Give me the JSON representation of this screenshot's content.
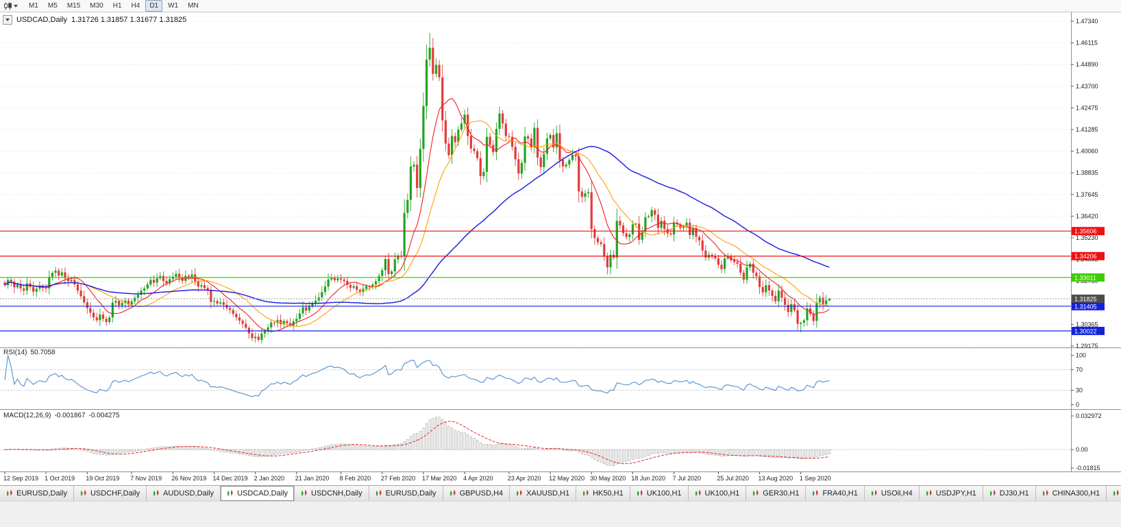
{
  "toolbar": {
    "timeframes": [
      "M1",
      "M5",
      "M15",
      "M30",
      "H1",
      "H4",
      "D1",
      "W1",
      "MN"
    ],
    "active_timeframe": "D1"
  },
  "chart": {
    "symbol_label": "USDCAD,Daily",
    "ohlc_text": "1.31726 1.31857 1.31677 1.31825"
  },
  "price_axis": {
    "labels": [
      "1.47340",
      "1.46115",
      "1.44890",
      "1.43700",
      "1.42475",
      "1.41285",
      "1.40060",
      "1.38835",
      "1.37645",
      "1.36420",
      "1.35230",
      "1.34005",
      "1.32780",
      "1.31555",
      "1.30365",
      "1.29175"
    ]
  },
  "rsi": {
    "label": "RSI(14)",
    "value": "50.7058",
    "period": 14,
    "color": "#4f8fd0",
    "levels": [
      70,
      30
    ],
    "axis": [
      {
        "v": 100,
        "t": "100"
      },
      {
        "v": 70,
        "t": "70"
      },
      {
        "v": 30,
        "t": "30"
      },
      {
        "v": 0,
        "t": "0"
      }
    ]
  },
  "macd": {
    "label": "MACD(12,26,9)",
    "main_value": "-0.001867",
    "signal_value": "-0.004275",
    "fast": 12,
    "slow": 26,
    "signal": 9,
    "hist_color": "#b3b3b3",
    "signal_color": "#ee2222",
    "range_min": -0.01815,
    "range_max": 0.032972,
    "axis": [
      {
        "v": 0.032972,
        "t": "0.032972"
      },
      {
        "v": 0,
        "t": "0.00"
      },
      {
        "v": -0.01815,
        "t": "-0.01815"
      }
    ]
  },
  "tabs": {
    "active_index": 3,
    "items": [
      {
        "label": "EURUSD,Daily"
      },
      {
        "label": "USDCHF,Daily"
      },
      {
        "label": "AUDUSD,Daily"
      },
      {
        "label": "USDCAD,Daily"
      },
      {
        "label": "USDCNH,Daily"
      },
      {
        "label": "EURUSD,Daily"
      },
      {
        "label": "GBPUSD,H4"
      },
      {
        "label": "XAUUSD,H1"
      },
      {
        "label": "HK50,H1"
      },
      {
        "label": "UK100,H1"
      },
      {
        "label": "UK100,H1"
      },
      {
        "label": "GER30,H1"
      },
      {
        "label": "FRA40,H1"
      },
      {
        "label": "USOil,H4"
      },
      {
        "label": "USDJPY,H1"
      },
      {
        "label": "DJ30,H1"
      },
      {
        "label": "CHINA300,H1"
      },
      {
        "label": "USOil,H1"
      }
    ]
  },
  "chart_data": {
    "type": "candlestick",
    "title": "USDCAD,Daily",
    "ylim": [
      1.29175,
      1.4734
    ],
    "ohlc_current": {
      "open": 1.31726,
      "high": 1.31857,
      "low": 1.31677,
      "close": 1.31825
    },
    "spike_high": 1.4669,
    "up_color": "#22a322",
    "down_color": "#e33a3a",
    "grid_color": "#dcdcdc",
    "x_labels": [
      "12 Sep 2019",
      "1 Oct 2019",
      "19 Oct 2019",
      "7 Nov 2019",
      "26 Nov 2019",
      "14 Dec 2019",
      "2 Jan 2020",
      "21 Jan 2020",
      "8 Feb 2020",
      "27 Feb 2020",
      "17 Mar 2020",
      "4 Apr 2020",
      "23 Apr 2020",
      "12 May 2020",
      "30 May 2020",
      "18 Jun 2020",
      "7 Jul 2020",
      "25 Jul 2020",
      "13 Aug 2020",
      "1 Sep 2020"
    ],
    "closes": [
      1.3258,
      1.3288,
      1.3278,
      1.3246,
      1.3262,
      1.324,
      1.3228,
      1.3268,
      1.3248,
      1.3222,
      1.3238,
      1.3252,
      1.3243,
      1.324,
      1.3305,
      1.3327,
      1.334,
      1.3312,
      1.333,
      1.3296,
      1.328,
      1.3288,
      1.3262,
      1.3228,
      1.3196,
      1.3162,
      1.313,
      1.3104,
      1.3078,
      1.3062,
      1.3094,
      1.307,
      1.3052,
      1.3078,
      1.316,
      1.317,
      1.3145,
      1.3158,
      1.3172,
      1.315,
      1.3168,
      1.3188,
      1.3205,
      1.3228,
      1.324,
      1.3262,
      1.3288,
      1.3272,
      1.3296,
      1.331,
      1.3282,
      1.3268,
      1.3292,
      1.3306,
      1.3322,
      1.3298,
      1.3282,
      1.331,
      1.3296,
      1.3318,
      1.328,
      1.325,
      1.3258,
      1.3242,
      1.3228,
      1.3165,
      1.317,
      1.3155,
      1.3162,
      1.3148,
      1.313,
      1.312,
      1.3098,
      1.3078,
      1.306,
      1.3042,
      1.302,
      1.2988,
      1.2962,
      1.297,
      1.2952,
      1.2988,
      1.3002,
      1.3022,
      1.305,
      1.3046,
      1.3064,
      1.304,
      1.3058,
      1.3046,
      1.3032,
      1.3056,
      1.307,
      1.31,
      1.3134,
      1.3116,
      1.314,
      1.3158,
      1.3172,
      1.319,
      1.322,
      1.325,
      1.329,
      1.3298,
      1.3286,
      1.3296,
      1.329,
      1.3282,
      1.326,
      1.3244,
      1.3252,
      1.3232,
      1.322,
      1.3238,
      1.3252,
      1.3248,
      1.3262,
      1.328,
      1.331,
      1.3342,
      1.3404,
      1.332,
      1.3335,
      1.3402,
      1.3422,
      1.3418,
      1.3662,
      1.3735,
      1.3922,
      1.3932,
      1.3802,
      1.402,
      1.426,
      1.452,
      1.4586,
      1.444,
      1.449,
      1.442,
      1.418,
      1.405,
      1.3985,
      1.4092,
      1.4058,
      1.4128,
      1.4162,
      1.4212,
      1.4092,
      1.4022,
      1.4008,
      1.3968,
      1.3868,
      1.3892,
      1.4088,
      1.4042,
      1.4002,
      1.4132,
      1.4218,
      1.4162,
      1.4092,
      1.4088,
      1.4032,
      1.3962,
      1.3882,
      1.3942,
      1.409,
      1.4078,
      1.403,
      1.4138,
      1.3972,
      1.3918,
      1.3992,
      1.4078,
      1.4098,
      1.4028,
      1.4108,
      1.3958,
      1.3922,
      1.3932,
      1.3958,
      1.3988,
      1.3978,
      1.3782,
      1.3752,
      1.3772,
      1.3778,
      1.3572,
      1.3522,
      1.3498,
      1.3488,
      1.3418,
      1.3358,
      1.3428,
      1.3412,
      1.3618,
      1.3592,
      1.3548,
      1.3528,
      1.3542,
      1.3598,
      1.3602,
      1.3512,
      1.3558,
      1.3638,
      1.3642,
      1.3678,
      1.3652,
      1.3578,
      1.3618,
      1.3572,
      1.3548,
      1.3542,
      1.3608,
      1.3598,
      1.3578,
      1.3588,
      1.3608,
      1.3538,
      1.3578,
      1.3528,
      1.3508,
      1.3452,
      1.3412,
      1.3428,
      1.3418,
      1.3408,
      1.3372,
      1.3348,
      1.3408,
      1.3418,
      1.3398,
      1.3388,
      1.3378,
      1.3328,
      1.3288,
      1.3358,
      1.3378,
      1.3328,
      1.3308,
      1.3248,
      1.3218,
      1.3258,
      1.3228,
      1.3198,
      1.3168,
      1.3228,
      1.3188,
      1.3148,
      1.3108,
      1.3152,
      1.3118,
      1.3042,
      1.3048,
      1.3062,
      1.3128,
      1.3098,
      1.3058,
      1.3162,
      1.3188,
      1.3152,
      1.3173,
      1.31825
    ],
    "low_overrides": [
      {
        "i": 80,
        "l": 1.2942
      },
      {
        "i": 250,
        "l": 1.3008
      },
      {
        "i": 251,
        "l": 1.2994
      }
    ],
    "moving_averages": [
      {
        "period": 10,
        "color": "#f21d1d"
      },
      {
        "period": 20,
        "color": "#ff9f00"
      },
      {
        "period": 60,
        "color": "#2424e0"
      }
    ],
    "h_lines": [
      {
        "price": 1.35606,
        "color": "#ee1111",
        "label": "1.35606"
      },
      {
        "price": 1.34206,
        "color": "#ee1111",
        "label": "1.34206"
      },
      {
        "price": 1.33011,
        "color": "#3ecc00",
        "label": "1.33011"
      },
      {
        "price": 1.31405,
        "color": "#1122dd",
        "label": "1.31405"
      },
      {
        "price": 1.30022,
        "color": "#1122dd",
        "label": "1.30022"
      }
    ],
    "current_price": {
      "value": 1.31825,
      "label": "1.31825",
      "color": "#4d4d4d"
    }
  }
}
